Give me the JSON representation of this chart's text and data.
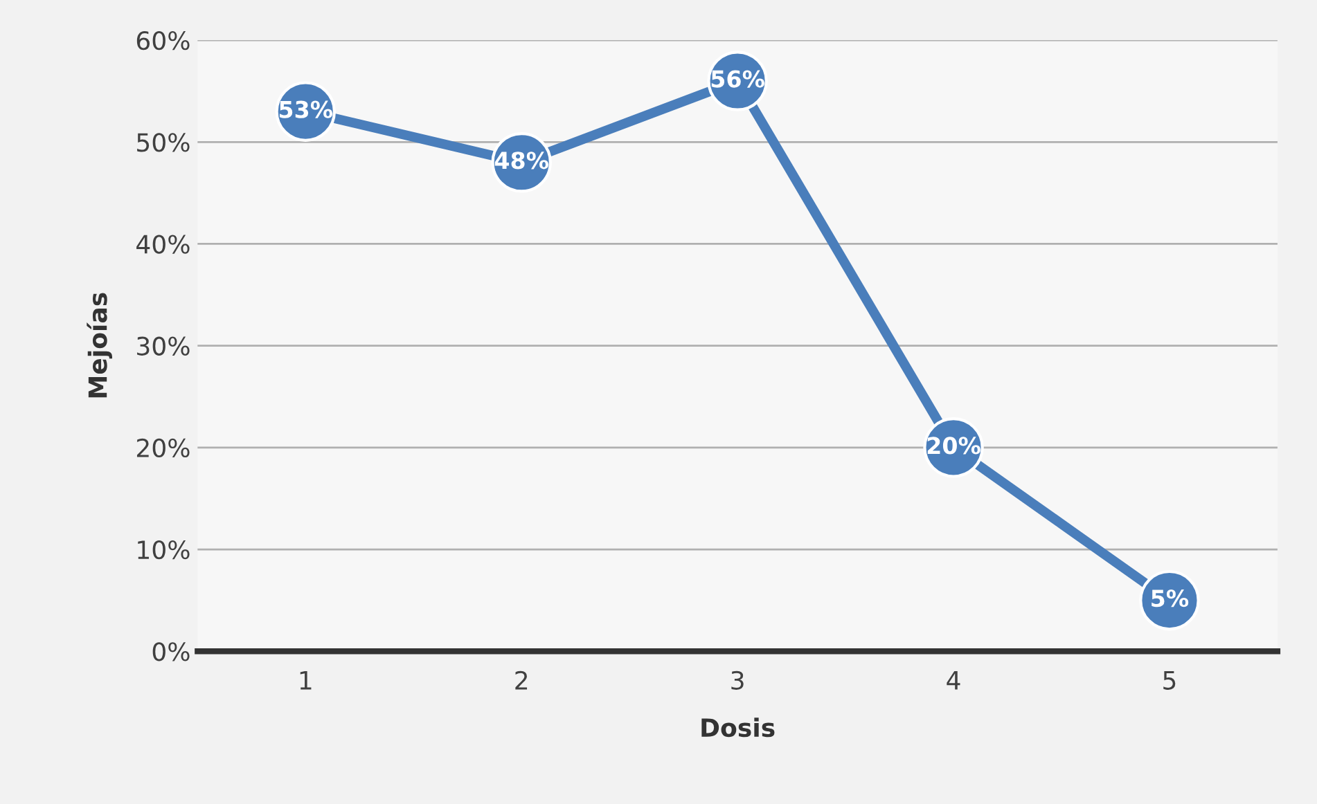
{
  "chart_data": {
    "type": "line",
    "xlabel": "Dosis",
    "ylabel": "Mejoías",
    "categories": [
      "1",
      "2",
      "3",
      "4",
      "5"
    ],
    "series": [
      {
        "color": "#4a7ebb",
        "values": [
          53,
          48,
          56,
          20,
          5
        ],
        "value_labels": [
          "53%",
          "48%",
          "56%",
          "20%",
          "5%"
        ]
      }
    ],
    "ylim": [
      0,
      60
    ],
    "yticks": [
      {
        "value": 0,
        "label": "0%"
      },
      {
        "value": 10,
        "label": "10%"
      },
      {
        "value": 20,
        "label": "20%"
      },
      {
        "value": 30,
        "label": "30%"
      },
      {
        "value": 40,
        "label": "40%"
      },
      {
        "value": 50,
        "label": "50%"
      },
      {
        "value": 60,
        "label": "60%"
      }
    ],
    "grid": "y",
    "legend": false,
    "marker": "circle",
    "line_style": "solid"
  }
}
